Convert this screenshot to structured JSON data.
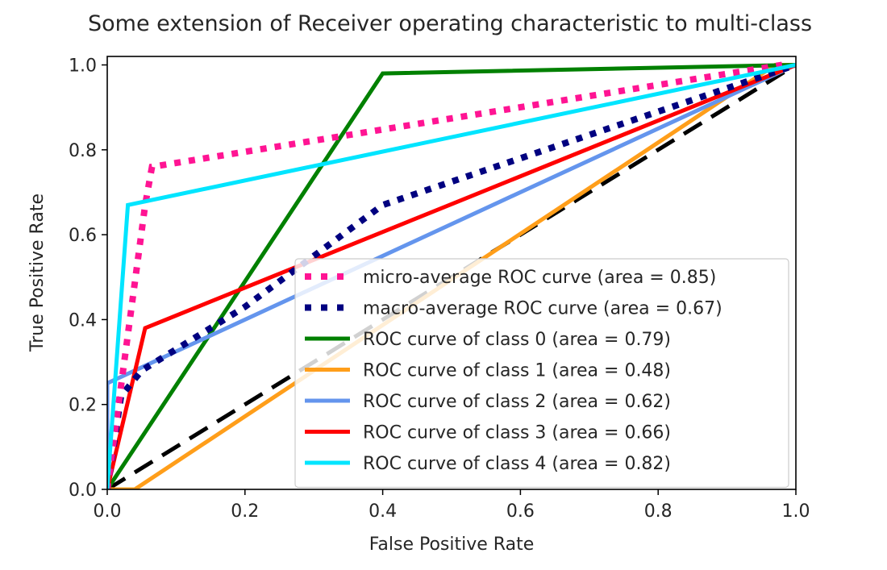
{
  "chart_data": {
    "type": "line",
    "title": "Some extension of Receiver operating characteristic to multi-class",
    "xlabel": "False Positive Rate",
    "ylabel": "True Positive Rate",
    "xlim": [
      0.0,
      1.0
    ],
    "ylim": [
      0.0,
      1.02
    ],
    "xticks": [
      0.0,
      0.2,
      0.4,
      0.6,
      0.8,
      1.0
    ],
    "yticks": [
      0.0,
      0.2,
      0.4,
      0.6,
      0.8,
      1.0
    ],
    "xtick_labels": [
      "0.0",
      "0.2",
      "0.4",
      "0.6",
      "0.8",
      "1.0"
    ],
    "ytick_labels": [
      "0.0",
      "0.2",
      "0.4",
      "0.6",
      "0.8",
      "1.0"
    ],
    "grid": false,
    "legend_position": "lower-right",
    "series": [
      {
        "name": "micro-average ROC curve (area = 0.85)",
        "color": "#ff1493",
        "style": "dotted",
        "x": [
          0.0,
          0.055,
          0.065,
          0.98
        ],
        "y": [
          0.0,
          0.67,
          0.76,
          1.0
        ]
      },
      {
        "name": "macro-average ROC curve (area = 0.67)",
        "color": "#000080",
        "style": "dotted",
        "x": [
          0.0,
          0.02,
          0.05,
          0.2,
          0.4,
          1.0
        ],
        "y": [
          0.0,
          0.22,
          0.28,
          0.43,
          0.67,
          1.0
        ]
      },
      {
        "name": "ROC curve of class 0 (area = 0.79)",
        "color": "#008000",
        "style": "solid",
        "x": [
          0.0,
          0.4,
          1.0
        ],
        "y": [
          0.0,
          0.98,
          1.0
        ]
      },
      {
        "name": "ROC curve of class 1 (area = 0.48)",
        "color": "#ff9e1a",
        "style": "solid",
        "x": [
          0.0,
          0.04,
          0.97,
          1.0
        ],
        "y": [
          0.0,
          0.0,
          1.0,
          1.0
        ]
      },
      {
        "name": "ROC curve of class 2 (area = 0.62)",
        "color": "#6495ed",
        "style": "solid",
        "x": [
          0.0,
          0.0,
          1.0
        ],
        "y": [
          0.0,
          0.25,
          1.0
        ]
      },
      {
        "name": "ROC curve of class 3 (area = 0.66)",
        "color": "#ff0000",
        "style": "solid",
        "x": [
          0.0,
          0.055,
          1.0
        ],
        "y": [
          0.0,
          0.38,
          1.0
        ]
      },
      {
        "name": "ROC curve of class 4 (area = 0.82)",
        "color": "#00e5ff",
        "style": "solid",
        "x": [
          0.0,
          0.03,
          1.0
        ],
        "y": [
          0.0,
          0.67,
          1.0
        ]
      },
      {
        "color": "#000000",
        "style": "dashed",
        "x": [
          0.0,
          1.0
        ],
        "y": [
          0.0,
          1.0
        ]
      }
    ]
  }
}
